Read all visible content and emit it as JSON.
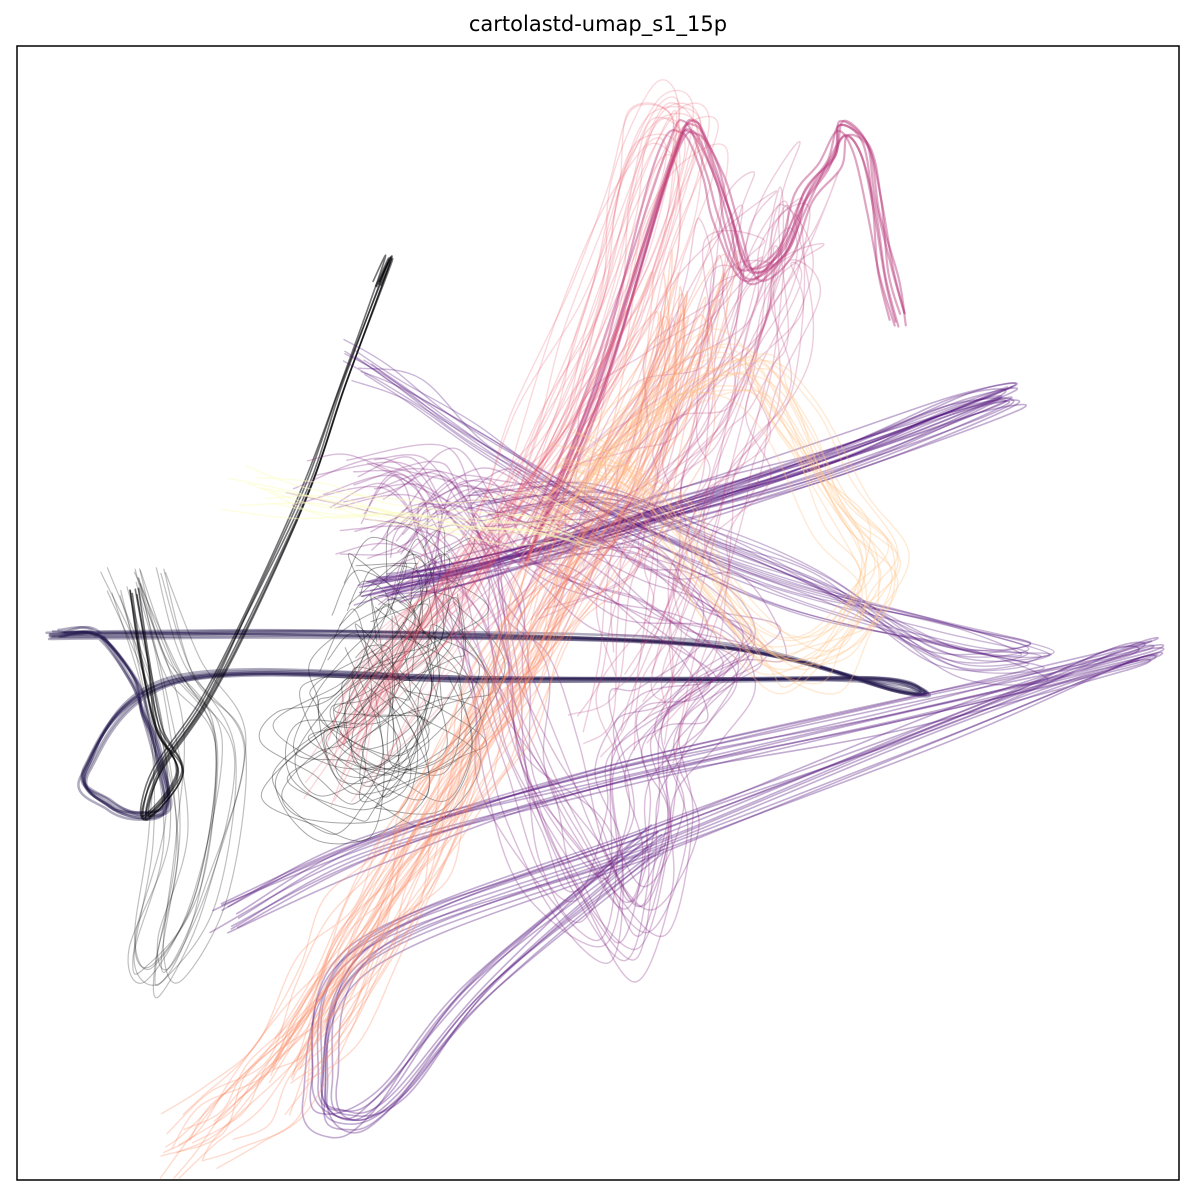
{
  "chart_data": {
    "type": "line",
    "title": "cartolastd-umap_s1_15p",
    "xlabel": "",
    "ylabel": "",
    "xticks": [],
    "yticks": [],
    "grid": false,
    "legend": "none",
    "colormap": "magma",
    "series_colors": [
      "#000004",
      "#1d1147",
      "#51127c",
      "#822681",
      "#b73779",
      "#e75263",
      "#fc8961",
      "#fec488",
      "#fcfdbf"
    ],
    "xlim": [
      0,
      100
    ],
    "ylim": [
      0,
      100
    ],
    "series": [
      {
        "color": "#1d1147",
        "opacity": 0.35,
        "width": 2.5,
        "copies": 8,
        "jitter": 0.5,
        "points": [
          [
            3,
            48
          ],
          [
            10,
            48
          ],
          [
            30,
            48
          ],
          [
            60,
            47
          ],
          [
            76,
            43
          ],
          [
            78,
            43
          ],
          [
            74,
            44
          ],
          [
            60,
            44
          ],
          [
            40,
            44
          ],
          [
            14,
            44
          ],
          [
            6,
            36
          ],
          [
            8,
            33
          ],
          [
            11,
            32
          ],
          [
            13,
            33
          ],
          [
            12,
            38
          ],
          [
            11,
            41
          ],
          [
            10,
            44
          ],
          [
            7,
            48
          ],
          [
            4,
            48
          ]
        ]
      },
      {
        "color": "#000004",
        "opacity": 0.55,
        "width": 1.6,
        "copies": 6,
        "jitter": 0.35,
        "points": [
          [
            10,
            52
          ],
          [
            11,
            46
          ],
          [
            12,
            40
          ],
          [
            14,
            36
          ],
          [
            11,
            32
          ],
          [
            12,
            36
          ],
          [
            16,
            42
          ],
          [
            20,
            50
          ],
          [
            25,
            61
          ],
          [
            28,
            70
          ],
          [
            32,
            81
          ],
          [
            31,
            79
          ]
        ]
      },
      {
        "color": "#000004",
        "opacity": 0.25,
        "width": 1.2,
        "copies": 10,
        "jitter": 1.6,
        "points": [
          [
            11,
            53
          ],
          [
            14,
            45
          ],
          [
            18,
            38
          ],
          [
            16,
            25
          ],
          [
            12,
            18
          ],
          [
            11,
            20
          ],
          [
            13,
            30
          ],
          [
            12,
            41
          ],
          [
            9,
            52
          ]
        ]
      },
      {
        "color": "#000004",
        "opacity": 0.35,
        "width": 1.0,
        "copies": 30,
        "jitter": 4.5,
        "points": [
          [
            31,
            50
          ],
          [
            33,
            53
          ],
          [
            35,
            49
          ],
          [
            32,
            45
          ],
          [
            28,
            42
          ],
          [
            26,
            38
          ],
          [
            29,
            35
          ],
          [
            34,
            36
          ],
          [
            36,
            41
          ],
          [
            33,
            46
          ]
        ]
      },
      {
        "color": "#51127c",
        "opacity": 0.35,
        "width": 1.6,
        "copies": 14,
        "jitter": 1.2,
        "points": [
          [
            30,
            52
          ],
          [
            50,
            57
          ],
          [
            70,
            63
          ],
          [
            85,
            69
          ],
          [
            81,
            68
          ],
          [
            70,
            64
          ],
          [
            55,
            59
          ],
          [
            40,
            54
          ],
          [
            32,
            52
          ]
        ]
      },
      {
        "color": "#51127c",
        "opacity": 0.35,
        "width": 1.6,
        "copies": 12,
        "jitter": 1.2,
        "points": [
          [
            18,
            23
          ],
          [
            30,
            29
          ],
          [
            50,
            35
          ],
          [
            75,
            41
          ],
          [
            96,
            46
          ],
          [
            95,
            46
          ],
          [
            80,
            40
          ],
          [
            55,
            30
          ],
          [
            30,
            20
          ],
          [
            26,
            8
          ],
          [
            28,
            5
          ],
          [
            32,
            7
          ],
          [
            40,
            17
          ],
          [
            55,
            30
          ]
        ]
      },
      {
        "color": "#51127c",
        "opacity": 0.3,
        "width": 1.4,
        "copies": 12,
        "jitter": 1.5,
        "points": [
          [
            29,
            72
          ],
          [
            33,
            70
          ],
          [
            40,
            65
          ],
          [
            50,
            59
          ],
          [
            65,
            52
          ],
          [
            80,
            48
          ],
          [
            88,
            46
          ],
          [
            80,
            46
          ],
          [
            70,
            52
          ],
          [
            60,
            56
          ],
          [
            50,
            60
          ],
          [
            40,
            59
          ]
        ]
      },
      {
        "color": "#822681",
        "opacity": 0.3,
        "width": 1.4,
        "copies": 22,
        "jitter": 3.5,
        "points": [
          [
            28,
            60
          ],
          [
            34,
            61
          ],
          [
            38,
            57
          ],
          [
            40,
            50
          ],
          [
            42,
            44
          ],
          [
            44,
            36
          ],
          [
            48,
            28
          ],
          [
            52,
            22
          ],
          [
            55,
            30
          ],
          [
            54,
            38
          ],
          [
            58,
            42
          ],
          [
            62,
            46
          ],
          [
            58,
            50
          ],
          [
            52,
            53
          ],
          [
            46,
            56
          ],
          [
            40,
            60
          ],
          [
            36,
            58
          ],
          [
            32,
            55
          ]
        ]
      },
      {
        "color": "#b73779",
        "opacity": 0.25,
        "width": 1.4,
        "copies": 24,
        "jitter": 4.5,
        "points": [
          [
            44,
            52
          ],
          [
            48,
            58
          ],
          [
            52,
            63
          ],
          [
            56,
            69
          ],
          [
            60,
            75
          ],
          [
            63,
            82
          ],
          [
            65,
            86
          ],
          [
            64,
            80
          ],
          [
            62,
            72
          ],
          [
            60,
            66
          ],
          [
            58,
            60
          ],
          [
            56,
            54
          ],
          [
            54,
            47
          ],
          [
            52,
            42
          ]
        ]
      },
      {
        "color": "#b73779",
        "opacity": 0.45,
        "width": 2.2,
        "copies": 8,
        "jitter": 0.8,
        "points": [
          [
            44,
            55
          ],
          [
            50,
            70
          ],
          [
            56,
            90
          ],
          [
            58,
            93
          ],
          [
            60,
            89
          ],
          [
            61,
            85
          ],
          [
            63,
            80
          ],
          [
            66,
            82
          ],
          [
            68,
            87
          ],
          [
            70,
            90
          ],
          [
            71,
            93
          ],
          [
            73,
            91
          ],
          [
            74,
            86
          ],
          [
            75,
            80
          ],
          [
            76,
            76
          ]
        ]
      },
      {
        "color": "#e75263",
        "opacity": 0.22,
        "width": 1.4,
        "copies": 20,
        "jitter": 2.5,
        "points": [
          [
            28,
            36
          ],
          [
            32,
            44
          ],
          [
            38,
            50
          ],
          [
            42,
            56
          ],
          [
            48,
            64
          ],
          [
            52,
            72
          ],
          [
            56,
            82
          ],
          [
            58,
            92
          ],
          [
            56,
            93
          ],
          [
            53,
            86
          ],
          [
            50,
            76
          ],
          [
            46,
            66
          ],
          [
            42,
            58
          ],
          [
            38,
            52
          ],
          [
            34,
            46
          ],
          [
            30,
            40
          ]
        ]
      },
      {
        "color": "#fc8961",
        "opacity": 0.3,
        "width": 1.4,
        "copies": 22,
        "jitter": 3.0,
        "points": [
          [
            15,
            3
          ],
          [
            18,
            6
          ],
          [
            22,
            10
          ],
          [
            26,
            16
          ],
          [
            30,
            22
          ],
          [
            34,
            28
          ],
          [
            38,
            35
          ],
          [
            42,
            42
          ],
          [
            46,
            50
          ],
          [
            50,
            56
          ],
          [
            54,
            62
          ],
          [
            57,
            70
          ],
          [
            58,
            78
          ],
          [
            56,
            72
          ],
          [
            52,
            64
          ],
          [
            48,
            56
          ],
          [
            44,
            48
          ],
          [
            40,
            40
          ],
          [
            36,
            32
          ],
          [
            32,
            24
          ],
          [
            28,
            16
          ],
          [
            24,
            10
          ]
        ]
      },
      {
        "color": "#fec488",
        "opacity": 0.35,
        "width": 1.4,
        "copies": 18,
        "jitter": 2.2,
        "points": [
          [
            44,
            58
          ],
          [
            50,
            64
          ],
          [
            56,
            70
          ],
          [
            62,
            72
          ],
          [
            66,
            68
          ],
          [
            70,
            60
          ],
          [
            74,
            55
          ],
          [
            72,
            50
          ],
          [
            68,
            46
          ],
          [
            64,
            47
          ],
          [
            60,
            52
          ],
          [
            56,
            58
          ],
          [
            52,
            62
          ],
          [
            47,
            64
          ]
        ]
      },
      {
        "color": "#fcfdbf",
        "opacity": 0.5,
        "width": 1.4,
        "copies": 10,
        "jitter": 1.8,
        "points": [
          [
            20,
            61
          ],
          [
            26,
            60
          ],
          [
            32,
            59
          ],
          [
            38,
            58
          ],
          [
            44,
            58
          ],
          [
            48,
            57
          ]
        ]
      }
    ]
  }
}
